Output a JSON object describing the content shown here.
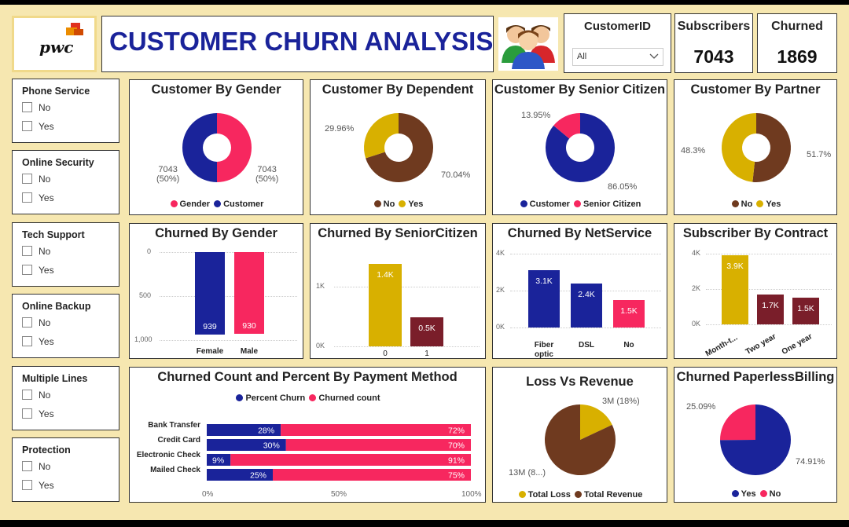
{
  "header": {
    "logo_text": "pwc",
    "title": "CUSTOMER CHURN ANALYSIS",
    "customer_id_label": "CustomerID",
    "customer_id_value": "All",
    "subscribers_label": "Subscribers",
    "subscribers_value": "7043",
    "churned_label": "Churned",
    "churned_value": "1869"
  },
  "slicers": [
    {
      "title": "Phone Service",
      "options": [
        "No",
        "Yes"
      ]
    },
    {
      "title": "Online Security",
      "options": [
        "No",
        "Yes"
      ]
    },
    {
      "title": "Tech Support",
      "options": [
        "No",
        "Yes"
      ]
    },
    {
      "title": "Online Backup",
      "options": [
        "No",
        "Yes"
      ]
    },
    {
      "title": "Multiple Lines",
      "options": [
        "No",
        "Yes"
      ]
    },
    {
      "title": "Protection",
      "options": [
        "No",
        "Yes"
      ]
    }
  ],
  "colors": {
    "navy": "#1a239a",
    "pink": "#f7275f",
    "gold": "#d8b000",
    "brown": "#6f3a1f",
    "maroon": "#7a1e2a"
  },
  "charts": {
    "gender": {
      "title": "Customer By Gender",
      "label_left": "7043",
      "label_left_pct": "(50%)",
      "label_right": "7043",
      "label_right_pct": "(50%)",
      "legend": [
        "Gender",
        "Customer"
      ]
    },
    "dependent": {
      "title": "Customer By Dependent",
      "label_yes": "29.96%",
      "label_no": "70.04%",
      "legend": [
        "No",
        "Yes"
      ]
    },
    "senior": {
      "title": "Customer By Senior Citizen",
      "label_senior": "13.95%",
      "label_customer": "86.05%",
      "legend": [
        "Customer",
        "Senior Citizen"
      ]
    },
    "partner": {
      "title": "Customer By Partner",
      "label_left": "48.3%",
      "label_right": "51.7%",
      "legend": [
        "No",
        "Yes"
      ]
    },
    "churn_gender": {
      "title": "Churned By Gender",
      "ticks": [
        "0",
        "500",
        "1,000"
      ],
      "cats": [
        "Female",
        "Male"
      ],
      "labels": [
        "939",
        "930"
      ]
    },
    "churn_senior": {
      "title": "Churned By SeniorCitizen",
      "ticks": [
        "1K",
        "0K"
      ],
      "cats": [
        "0",
        "1"
      ],
      "labels": [
        "1.4K",
        "0.5K"
      ]
    },
    "churn_net": {
      "title": "Churned By NetService",
      "ticks": [
        "4K",
        "2K",
        "0K"
      ],
      "cats": [
        "Fiber optic",
        "DSL",
        "No"
      ],
      "labels": [
        "3.1K",
        "2.4K",
        "1.5K"
      ]
    },
    "contract": {
      "title": "Subscriber By Contract",
      "ticks": [
        "4K",
        "2K",
        "0K"
      ],
      "cats": [
        "Month-t...",
        "Two year",
        "One year"
      ],
      "labels": [
        "3.9K",
        "1.7K",
        "1.5K"
      ]
    },
    "payment": {
      "title": "Churned Count and Percent By Payment Method",
      "legend": [
        "Percent Churn",
        "Churned count"
      ],
      "ticks": [
        "0%",
        "50%",
        "100%"
      ]
    },
    "loss": {
      "title": "Loss Vs Revenue",
      "label_loss": "3M (18%)",
      "label_rev": "13M (8...)",
      "legend": [
        "Total Loss",
        "Total Revenue"
      ]
    },
    "paperless": {
      "title": "Churned PaperlessBilling",
      "label_no": "25.09%",
      "label_yes": "74.91%",
      "legend": [
        "Yes",
        "No"
      ]
    }
  },
  "chart_data": [
    {
      "type": "pie",
      "title": "Customer By Gender",
      "categories": [
        "Gender",
        "Customer"
      ],
      "values": [
        7043,
        7043
      ],
      "percent": [
        50,
        50
      ]
    },
    {
      "type": "pie",
      "title": "Customer By Dependent",
      "categories": [
        "No",
        "Yes"
      ],
      "values": [
        70.04,
        29.96
      ]
    },
    {
      "type": "pie",
      "title": "Customer By Senior Citizen",
      "categories": [
        "Customer",
        "Senior Citizen"
      ],
      "values": [
        86.05,
        13.95
      ]
    },
    {
      "type": "pie",
      "title": "Customer By Partner",
      "categories": [
        "No",
        "Yes"
      ],
      "values": [
        51.7,
        48.3
      ]
    },
    {
      "type": "bar",
      "title": "Churned By Gender",
      "categories": [
        "Female",
        "Male"
      ],
      "values": [
        939,
        930
      ],
      "ylim": [
        0,
        1000
      ],
      "yticks": [
        0,
        500,
        1000
      ]
    },
    {
      "type": "bar",
      "title": "Churned By SeniorCitizen",
      "categories": [
        "0",
        "1"
      ],
      "values": [
        1400,
        500
      ],
      "ylim": [
        0,
        1500
      ]
    },
    {
      "type": "bar",
      "title": "Churned By NetService",
      "categories": [
        "Fiber optic",
        "DSL",
        "No"
      ],
      "values": [
        3100,
        2400,
        1500
      ],
      "ylim": [
        0,
        4000
      ]
    },
    {
      "type": "bar",
      "title": "Subscriber By Contract",
      "categories": [
        "Month-t...",
        "Two year",
        "One year"
      ],
      "values": [
        3900,
        1700,
        1500
      ],
      "ylim": [
        0,
        4000
      ]
    },
    {
      "type": "bar",
      "title": "Churned Count and Percent By Payment Method",
      "categories": [
        "Bank Transfer",
        "Credit Card",
        "Electronic Check",
        "Mailed Check"
      ],
      "series": [
        {
          "name": "Percent Churn",
          "values": [
            28,
            30,
            9,
            25
          ]
        },
        {
          "name": "Churned count",
          "values": [
            72,
            70,
            91,
            75
          ]
        }
      ],
      "ylim": [
        0,
        100
      ]
    },
    {
      "type": "pie",
      "title": "Loss Vs Revenue",
      "categories": [
        "Total Loss",
        "Total Revenue"
      ],
      "values": [
        18,
        82
      ]
    },
    {
      "type": "pie",
      "title": "Churned PaperlessBilling",
      "categories": [
        "Yes",
        "No"
      ],
      "values": [
        74.91,
        25.09
      ]
    }
  ]
}
